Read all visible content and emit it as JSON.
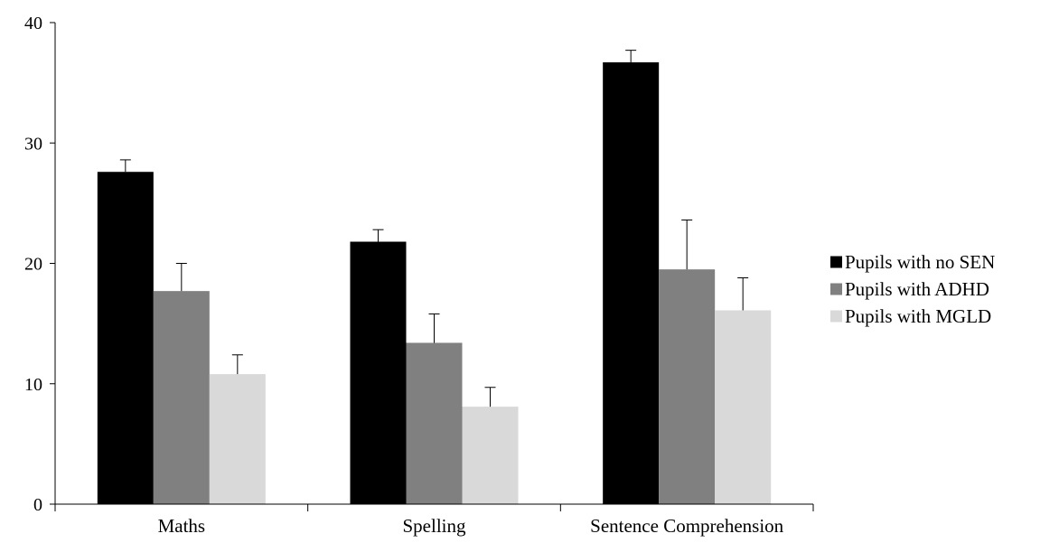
{
  "chart_data": {
    "type": "bar",
    "title": "",
    "xlabel": "",
    "ylabel": "",
    "categories": [
      "Maths",
      "Spelling",
      "Sentence Comprehension"
    ],
    "ylim": [
      0,
      40
    ],
    "yticks": [
      0,
      10,
      20,
      30,
      40
    ],
    "grid": false,
    "legend_position": "right",
    "error_bars": "positive-only",
    "series": [
      {
        "name": "Pupils with no SEN",
        "color": "#000000",
        "values": [
          27.6,
          21.8,
          36.7
        ],
        "errors": [
          1.0,
          1.0,
          1.0
        ]
      },
      {
        "name": "Pupils with ADHD",
        "color": "#808080",
        "values": [
          17.7,
          13.4,
          19.5
        ],
        "errors": [
          2.3,
          2.4,
          4.1
        ]
      },
      {
        "name": "Pupils with MGLD",
        "color": "#d9d9d9",
        "values": [
          10.8,
          8.1,
          16.1
        ],
        "errors": [
          1.6,
          1.6,
          2.7
        ]
      }
    ]
  }
}
